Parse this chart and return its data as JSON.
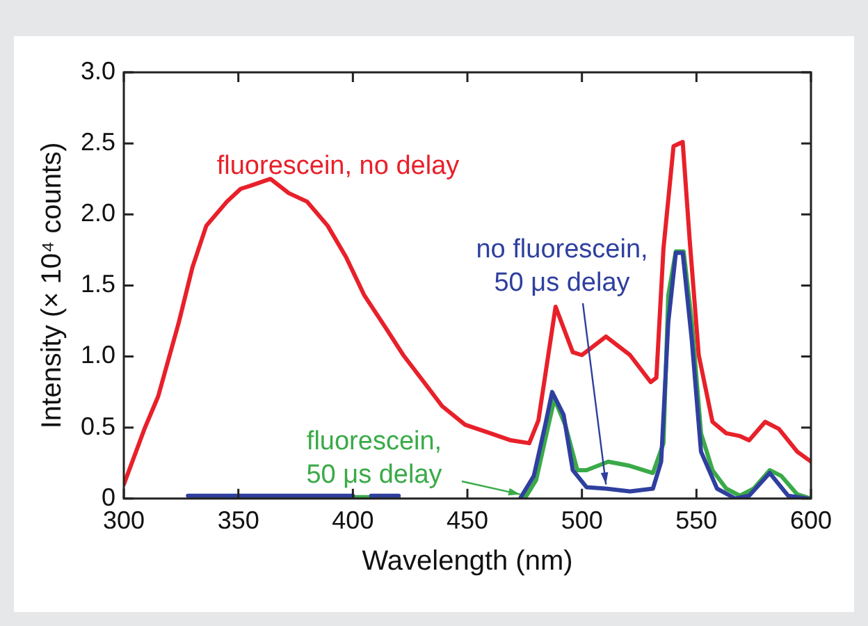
{
  "chart_data": {
    "type": "line",
    "xlabel": "Wavelength (nm)",
    "ylabel": "Intensity (× 10⁴ counts)",
    "xlim": [
      300,
      600
    ],
    "xticks": [
      300,
      350,
      400,
      450,
      500,
      550,
      600
    ],
    "ylim": [
      0,
      3.0
    ],
    "yticks": [
      0,
      0.5,
      {
        "value": 1,
        "label": "1.0"
      },
      1.5,
      {
        "value": 2,
        "label": "2.0"
      },
      2.5,
      {
        "value": 3,
        "label": "3.0"
      }
    ],
    "legend": false,
    "marker": "none",
    "line_style": "solid",
    "series": [
      {
        "name": "fluorescein, no delay",
        "color": "#e8202a",
        "x": [
          300,
          309,
          315,
          324,
          330,
          336,
          345,
          351,
          355,
          364,
          372,
          380,
          389,
          397,
          405,
          414,
          422,
          431,
          439,
          449,
          460,
          469,
          477,
          481,
          488.5,
          496,
          500,
          510.5,
          521,
          530,
          532.5,
          535.6,
          540,
          544,
          547,
          551,
          557,
          563,
          569,
          573,
          580,
          586,
          594,
          600
        ],
        "values": [
          0.1,
          0.49,
          0.72,
          1.24,
          1.63,
          1.92,
          2.09,
          2.18,
          2.2,
          2.25,
          2.15,
          2.09,
          1.92,
          1.7,
          1.43,
          1.21,
          1.01,
          0.82,
          0.65,
          0.52,
          0.46,
          0.41,
          0.39,
          0.55,
          1.35,
          1.03,
          1.01,
          1.14,
          1.01,
          0.82,
          0.85,
          1.76,
          2.48,
          2.51,
          1.83,
          1.01,
          0.54,
          0.46,
          0.44,
          0.41,
          0.54,
          0.49,
          0.33,
          0.26
        ]
      },
      {
        "name": "no fluorescein,\n50 μs delay",
        "color": "#2f3f9f",
        "x": [
          328,
          400,
          404,
          408,
          420,
          446,
          473,
          479,
          484,
          487,
          492,
          496,
          502,
          510.5,
          521,
          531,
          534.6,
          537.7,
          541,
          544,
          548,
          552,
          559,
          567,
          573,
          582,
          590,
          598.5
        ],
        "values": [
          0.02,
          0.02,
          null,
          0.02,
          0.02,
          null,
          0,
          0.16,
          0.52,
          0.75,
          0.59,
          0.2,
          0.08,
          0.07,
          0.05,
          0.07,
          0.26,
          1.24,
          1.73,
          1.73,
          1.11,
          0.33,
          0.07,
          0,
          0.02,
          0.18,
          0.02,
          0
        ]
      },
      {
        "name": "fluorescein,\n50 μs delay",
        "color": "#3aaa48",
        "x": [
          330,
          420,
          447,
          475,
          480,
          485,
          488,
          492.7,
          498,
          502,
          511.5,
          521,
          531,
          535.6,
          537.7,
          541,
          544.4,
          548,
          552,
          557,
          563,
          569,
          575,
          582,
          587,
          594,
          600
        ],
        "values": [
          0.01,
          0.01,
          null,
          0,
          0.13,
          0.49,
          0.7,
          0.52,
          0.2,
          0.2,
          0.26,
          0.23,
          0.18,
          0.39,
          1.43,
          1.74,
          1.74,
          1.24,
          0.46,
          0.2,
          0.07,
          0.02,
          0.07,
          0.2,
          0.16,
          0.03,
          0
        ]
      }
    ]
  }
}
